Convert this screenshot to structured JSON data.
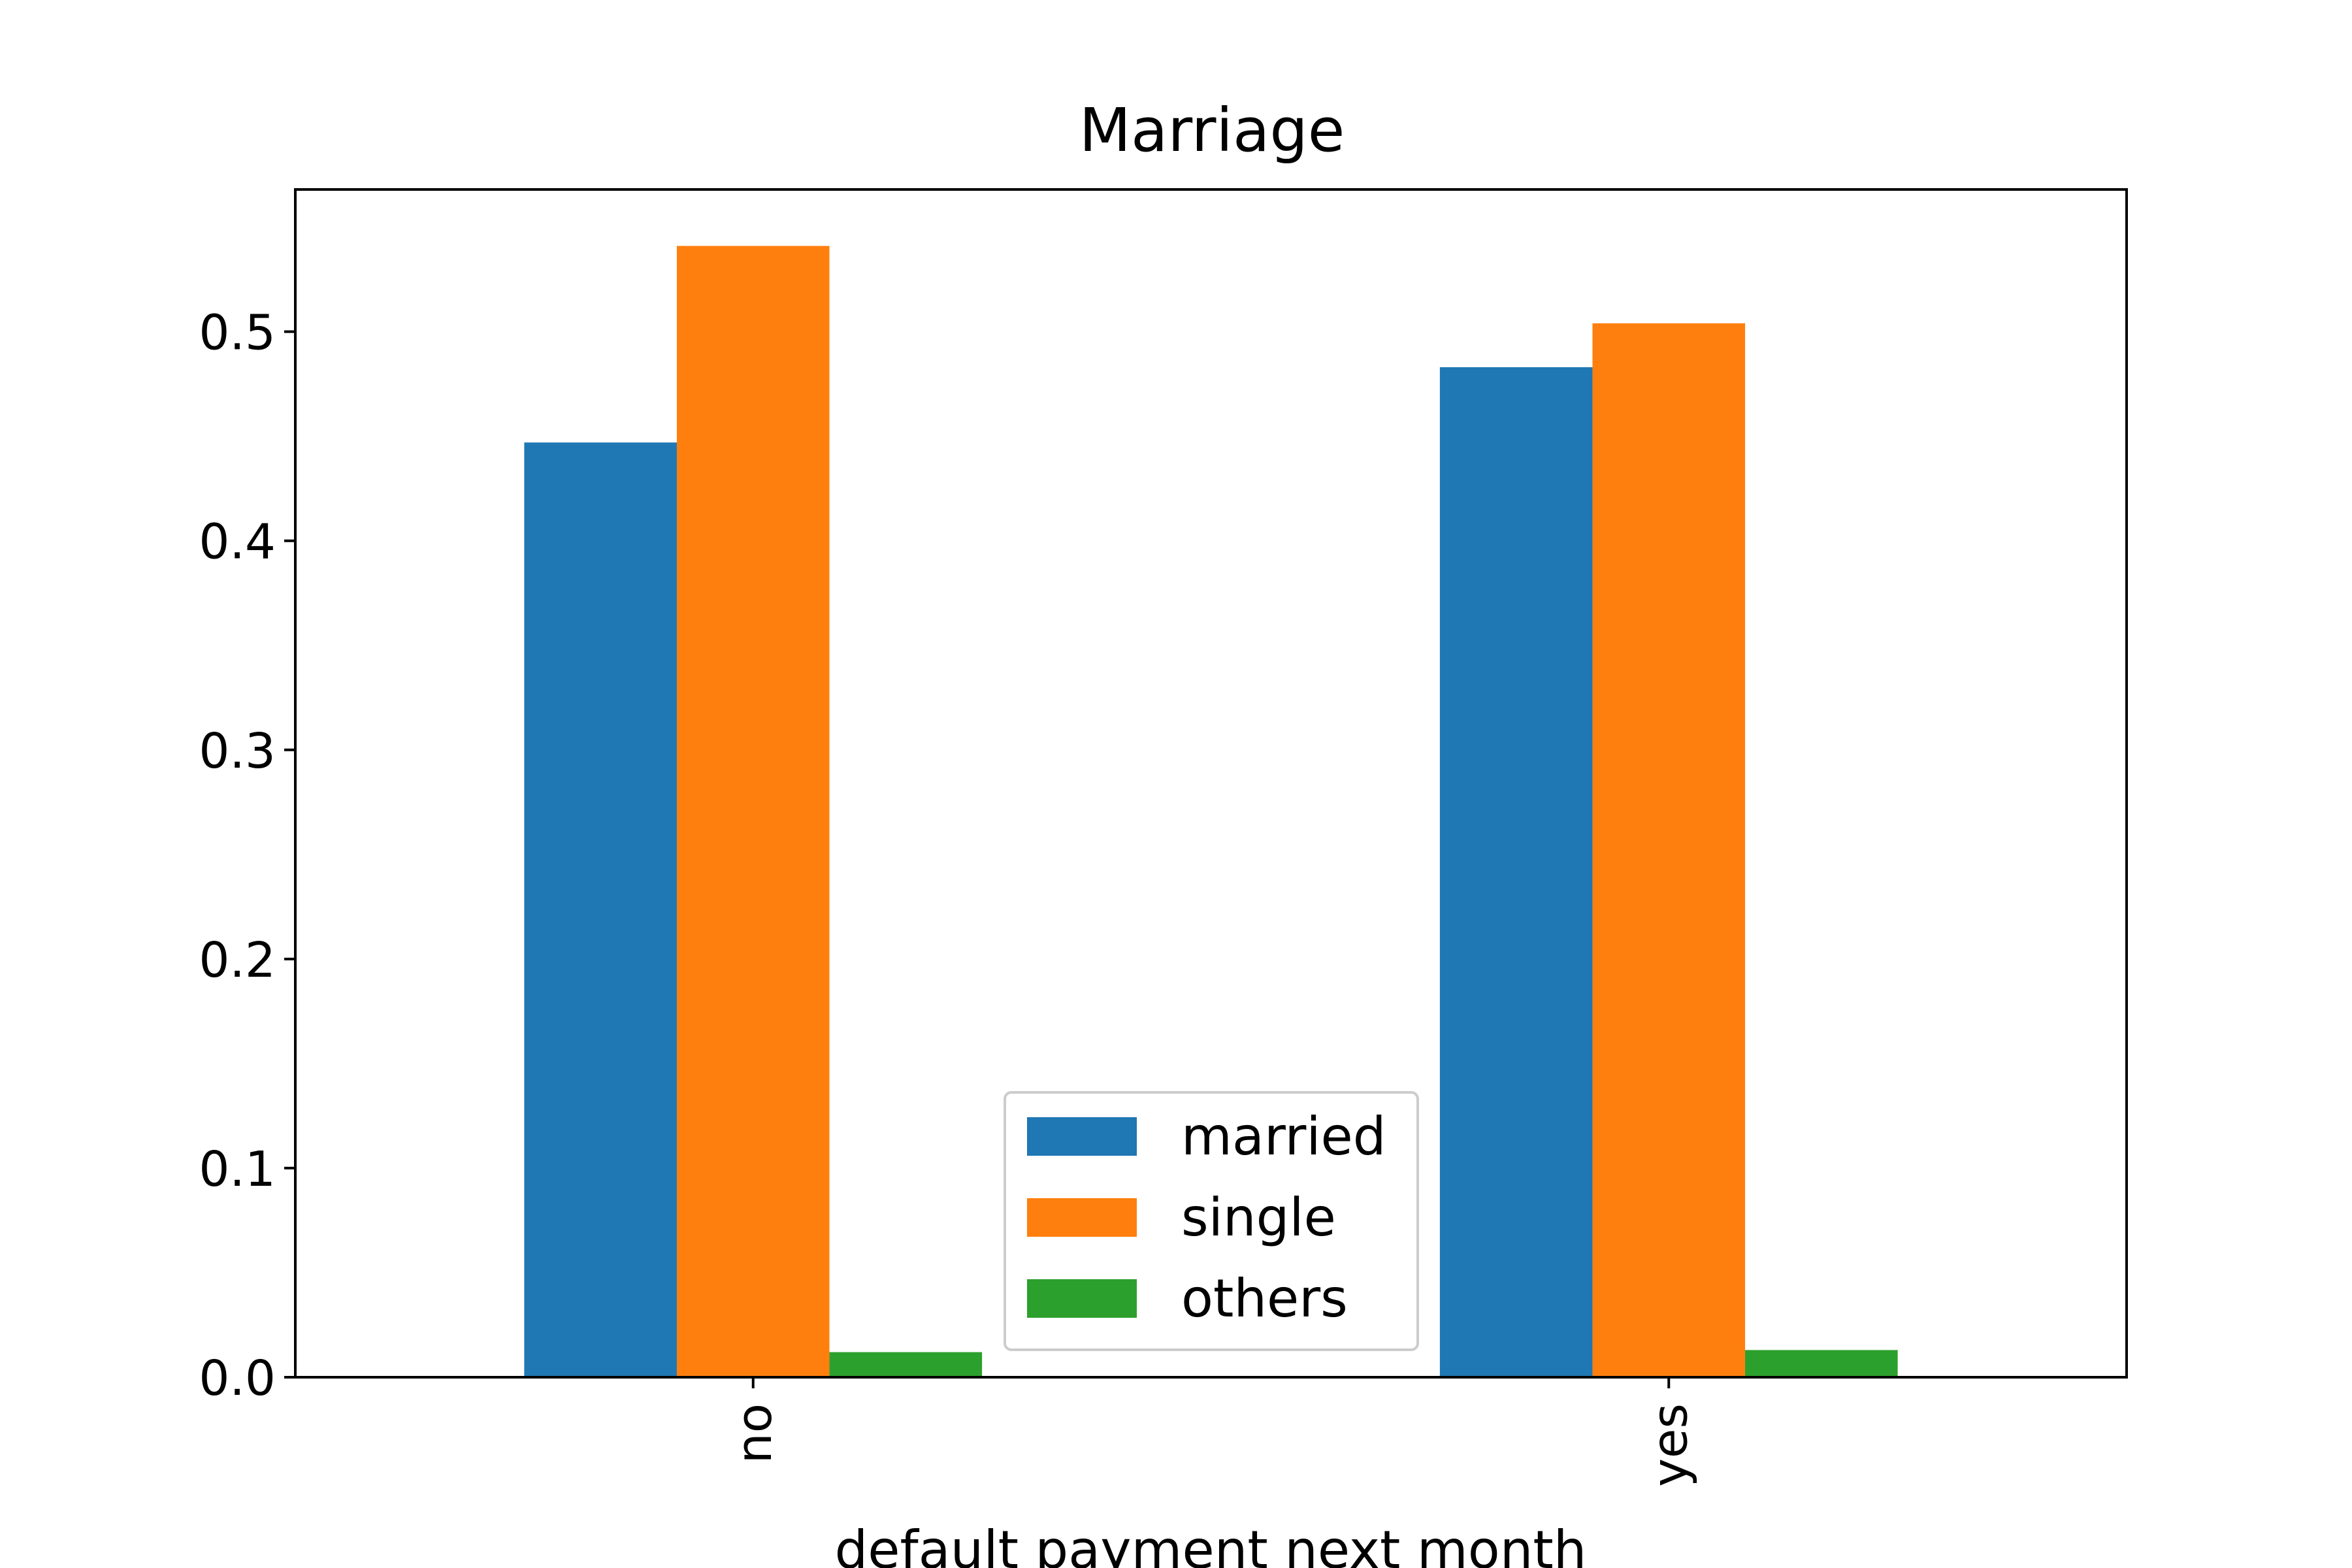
{
  "chart_data": {
    "type": "bar",
    "title": "Marriage",
    "xlabel": "default payment next month",
    "ylabel": "",
    "categories": [
      "no",
      "yes"
    ],
    "series": [
      {
        "name": "married",
        "color": "#1f77b4",
        "values": [
          0.447,
          0.483
        ]
      },
      {
        "name": "single",
        "color": "#ff7f0e",
        "values": [
          0.541,
          0.504
        ]
      },
      {
        "name": "others",
        "color": "#2ca02c",
        "values": [
          0.012,
          0.013
        ]
      }
    ],
    "ylim": [
      0,
      0.568
    ],
    "yticks": [
      "0.0",
      "0.1",
      "0.2",
      "0.3",
      "0.4",
      "0.5"
    ],
    "grid": false,
    "legend_position": "lower center",
    "x_tick_rotation": "vertical"
  }
}
